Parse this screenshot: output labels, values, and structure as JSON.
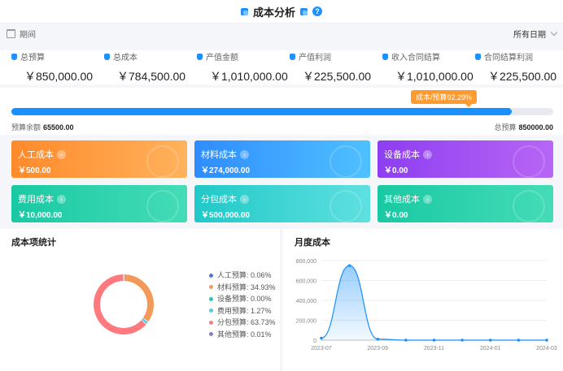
{
  "header": {
    "title": "成本分析",
    "help_icon": "question-circle-icon"
  },
  "filters": {
    "period_label": "期间",
    "date_range": "所有日期"
  },
  "summary": [
    {
      "label": "总预算",
      "value": "￥850,000.00"
    },
    {
      "label": "总成本",
      "value": "￥784,500.00"
    },
    {
      "label": "产值金额",
      "value": "￥1,010,000.00"
    },
    {
      "label": "产值利润",
      "value": "￥225,500.00"
    },
    {
      "label": "收入合同结算",
      "value": "￥1,010,000.00"
    },
    {
      "label": "合同结算利润",
      "value": "￥225,500.00"
    }
  ],
  "progress": {
    "badge": "成本/预算92.29%",
    "percent": 92.29,
    "remaining_label": "预算余额",
    "remaining_value": "65500.00",
    "total_label": "总预算",
    "total_value": "850000.00",
    "fill_color": "#1890ff"
  },
  "cards": [
    {
      "title": "人工成本",
      "value": "￥500.00",
      "color_a": "#ff8a2b",
      "color_b": "#ffb25c"
    },
    {
      "title": "材料成本",
      "value": "￥274,000.00",
      "color_a": "#2f8cff",
      "color_b": "#4fc1ff"
    },
    {
      "title": "设备成本",
      "value": "￥0.00",
      "color_a": "#8d3ef0",
      "color_b": "#b866f5"
    },
    {
      "title": "费用成本",
      "value": "￥10,000.00",
      "color_a": "#19c9a3",
      "color_b": "#44dcb7"
    },
    {
      "title": "分包成本",
      "value": "￥500,000.00",
      "color_a": "#20c9c8",
      "color_b": "#5fe0e0"
    },
    {
      "title": "其他成本",
      "value": "￥0.00",
      "color_a": "#19c9a3",
      "color_b": "#44dcb7"
    }
  ],
  "cost_stats": {
    "title": "成本项统计"
  },
  "monthly": {
    "title": "月度成本"
  },
  "chart_data": [
    {
      "type": "pie",
      "title": "成本项统计",
      "categories": [
        "人工预算",
        "材料预算",
        "设备预算",
        "费用预算",
        "分包预算",
        "其他预算"
      ],
      "labels": [
        "人工预算: 0.06%",
        "材料预算: 34.93%",
        "设备预算: 0.00%",
        "费用预算: 1.27%",
        "分包预算: 63.73%",
        "其他预算: 0.01%"
      ],
      "values": [
        0.06,
        34.93,
        0.0,
        1.27,
        63.73,
        0.01
      ],
      "colors": [
        "#4a7bd0",
        "#f39a5a",
        "#2ec4b6",
        "#5ac8e6",
        "#ff7a7f",
        "#8a7ad8"
      ]
    },
    {
      "type": "area",
      "title": "月度成本",
      "x": [
        "2023-07",
        "2023-08",
        "2023-09",
        "2023-10",
        "2023-11",
        "2023-12",
        "2024-01",
        "2024-02",
        "2024-03"
      ],
      "x_ticks": [
        "2023-07",
        "2023-09",
        "2023-11",
        "2024-01",
        "2024-03"
      ],
      "values": [
        20000,
        750000,
        10000,
        0,
        0,
        0,
        0,
        0,
        0
      ],
      "ylim": [
        0,
        800000
      ],
      "y_ticks": [
        "0",
        "200,000",
        "400,000",
        "600,000",
        "800,000"
      ],
      "grid": true,
      "color": "#1890ff"
    }
  ]
}
